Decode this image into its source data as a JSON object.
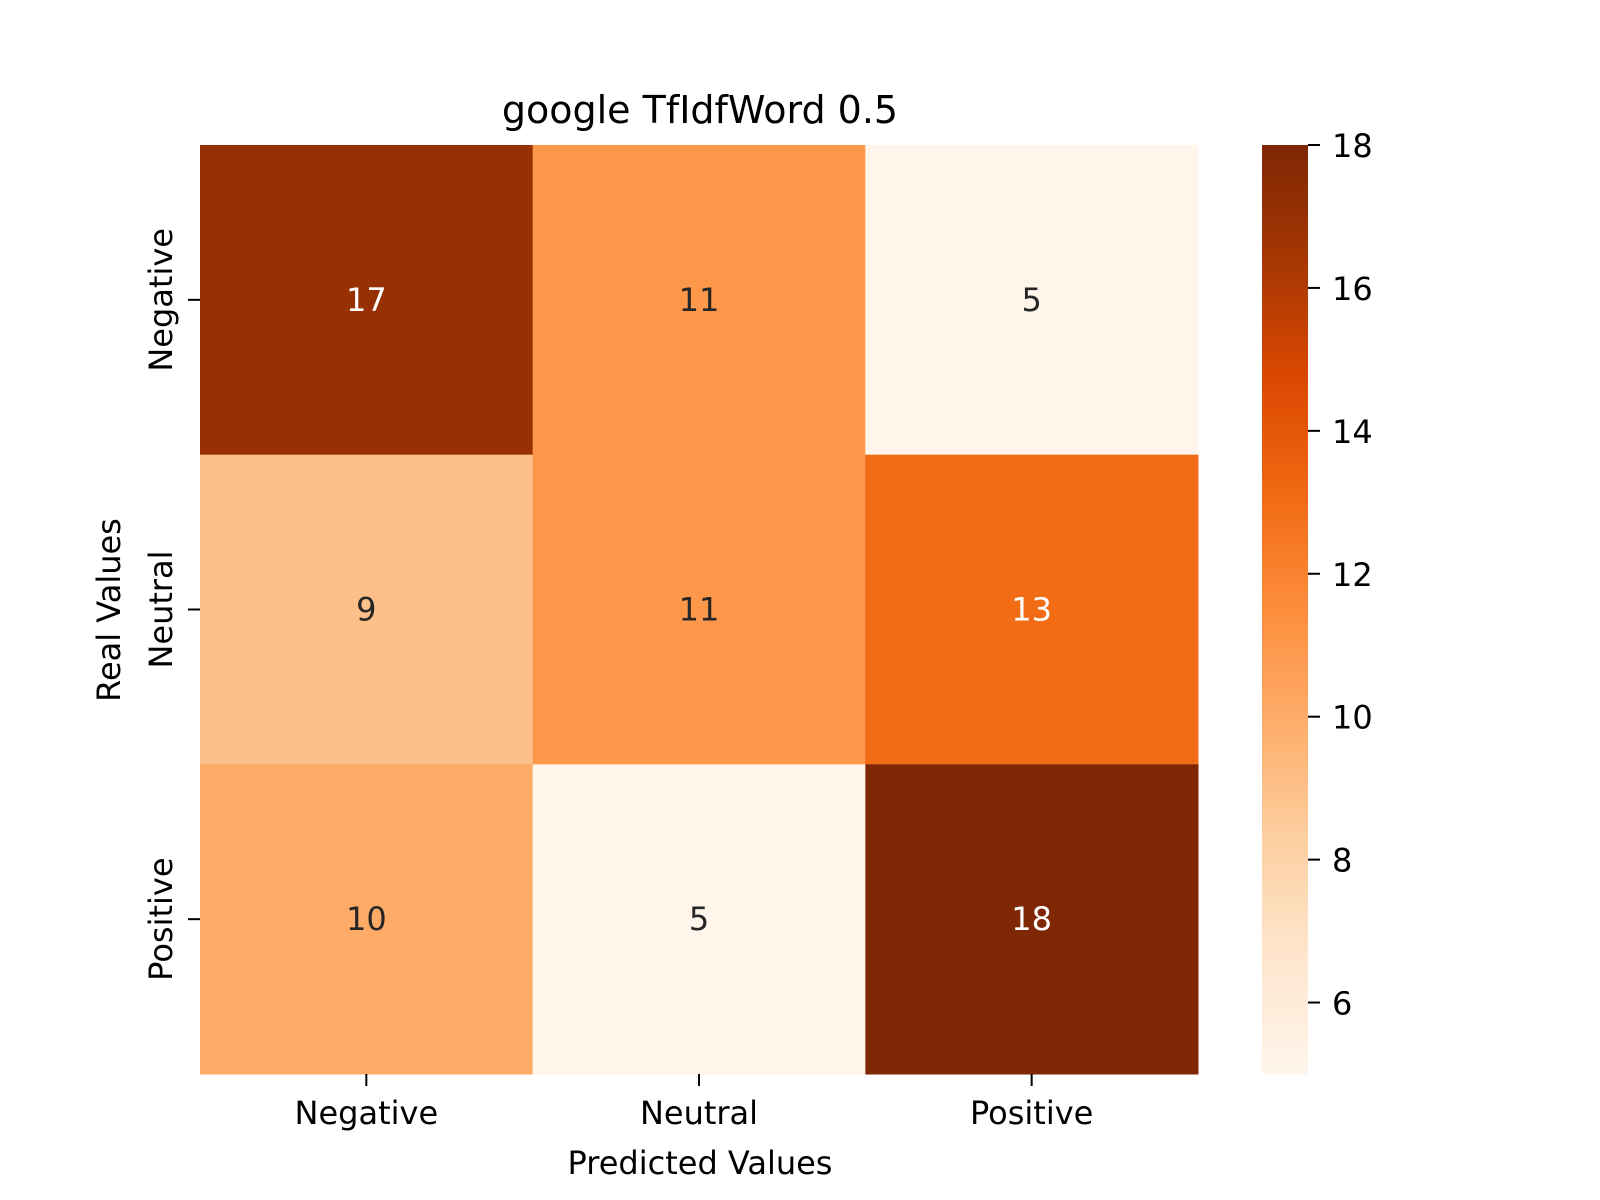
{
  "chart_data": {
    "type": "heatmap",
    "title": "google TfIdfWord 0.5",
    "xlabel": "Predicted Values",
    "ylabel": "Real Values",
    "x_categories": [
      "Negative",
      "Neutral",
      "Positive"
    ],
    "y_categories": [
      "Negative",
      "Neutral",
      "Positive"
    ],
    "values": [
      [
        17,
        11,
        5
      ],
      [
        9,
        11,
        13
      ],
      [
        10,
        5,
        18
      ]
    ],
    "colormap": "Oranges",
    "color_range": [
      5,
      18
    ],
    "colorbar_ticks": [
      6,
      8,
      10,
      12,
      14,
      16,
      18
    ],
    "annotations": true,
    "text_colors": {
      "dark": "#262626",
      "light": "#ffffff"
    }
  }
}
